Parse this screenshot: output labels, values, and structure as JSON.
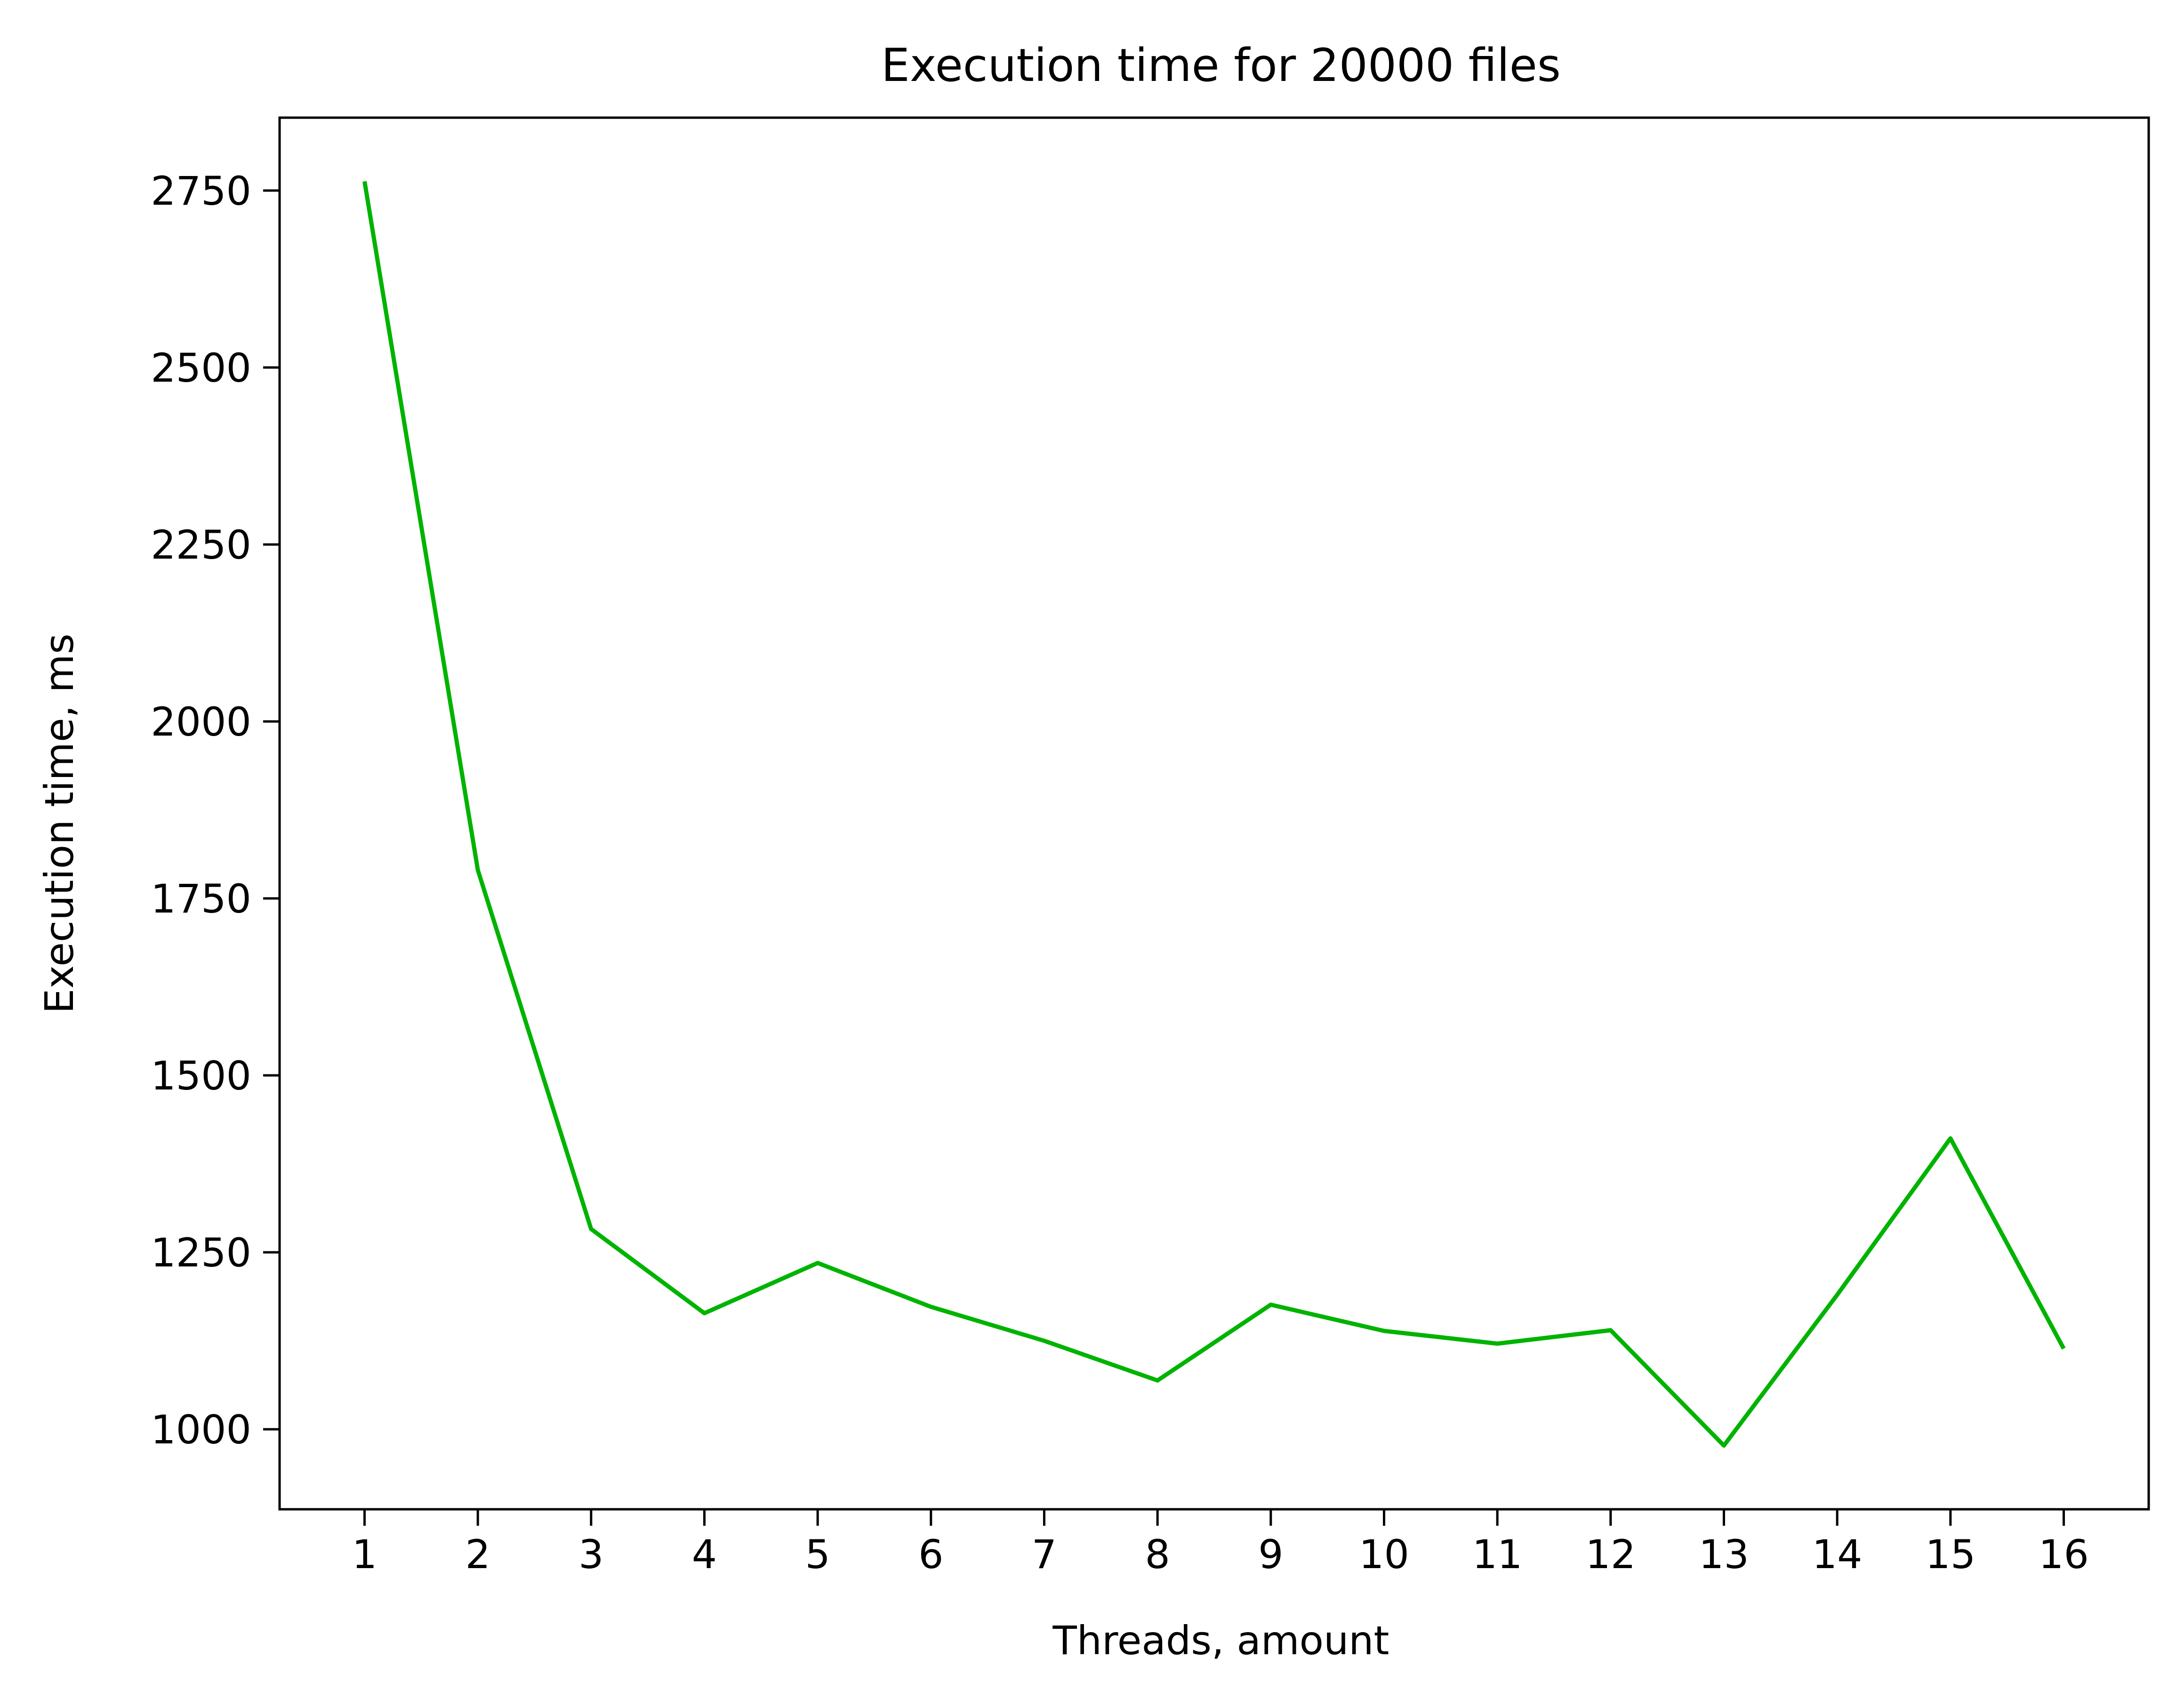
{
  "chart_data": {
    "type": "line",
    "title": "Execution time for 20000 files",
    "xlabel": "Threads, amount",
    "ylabel": "Execution time, ms",
    "x": [
      1,
      2,
      3,
      4,
      5,
      6,
      7,
      8,
      9,
      10,
      11,
      12,
      13,
      14,
      15,
      16
    ],
    "series": [
      {
        "values": [
          2763,
          1790,
          1283,
          1164,
          1235,
          1173,
          1125,
          1069,
          1176,
          1139,
          1121,
          1140,
          977,
          1190,
          1411,
          1114
        ],
        "color": "#00b300"
      }
    ],
    "xticks": [
      "1",
      "2",
      "3",
      "4",
      "5",
      "6",
      "7",
      "8",
      "9",
      "10",
      "11",
      "12",
      "13",
      "14",
      "15",
      "16"
    ],
    "yticks": [
      1000,
      1250,
      1500,
      1750,
      2000,
      2250,
      2500,
      2750
    ],
    "ytick_labels": [
      "1000",
      "1250",
      "1500",
      "1750",
      "2000",
      "2250",
      "2500",
      "2750"
    ],
    "xlim": [
      0.25,
      16.75
    ],
    "ylim": [
      887,
      2853
    ],
    "grid": false,
    "legend": "none"
  }
}
